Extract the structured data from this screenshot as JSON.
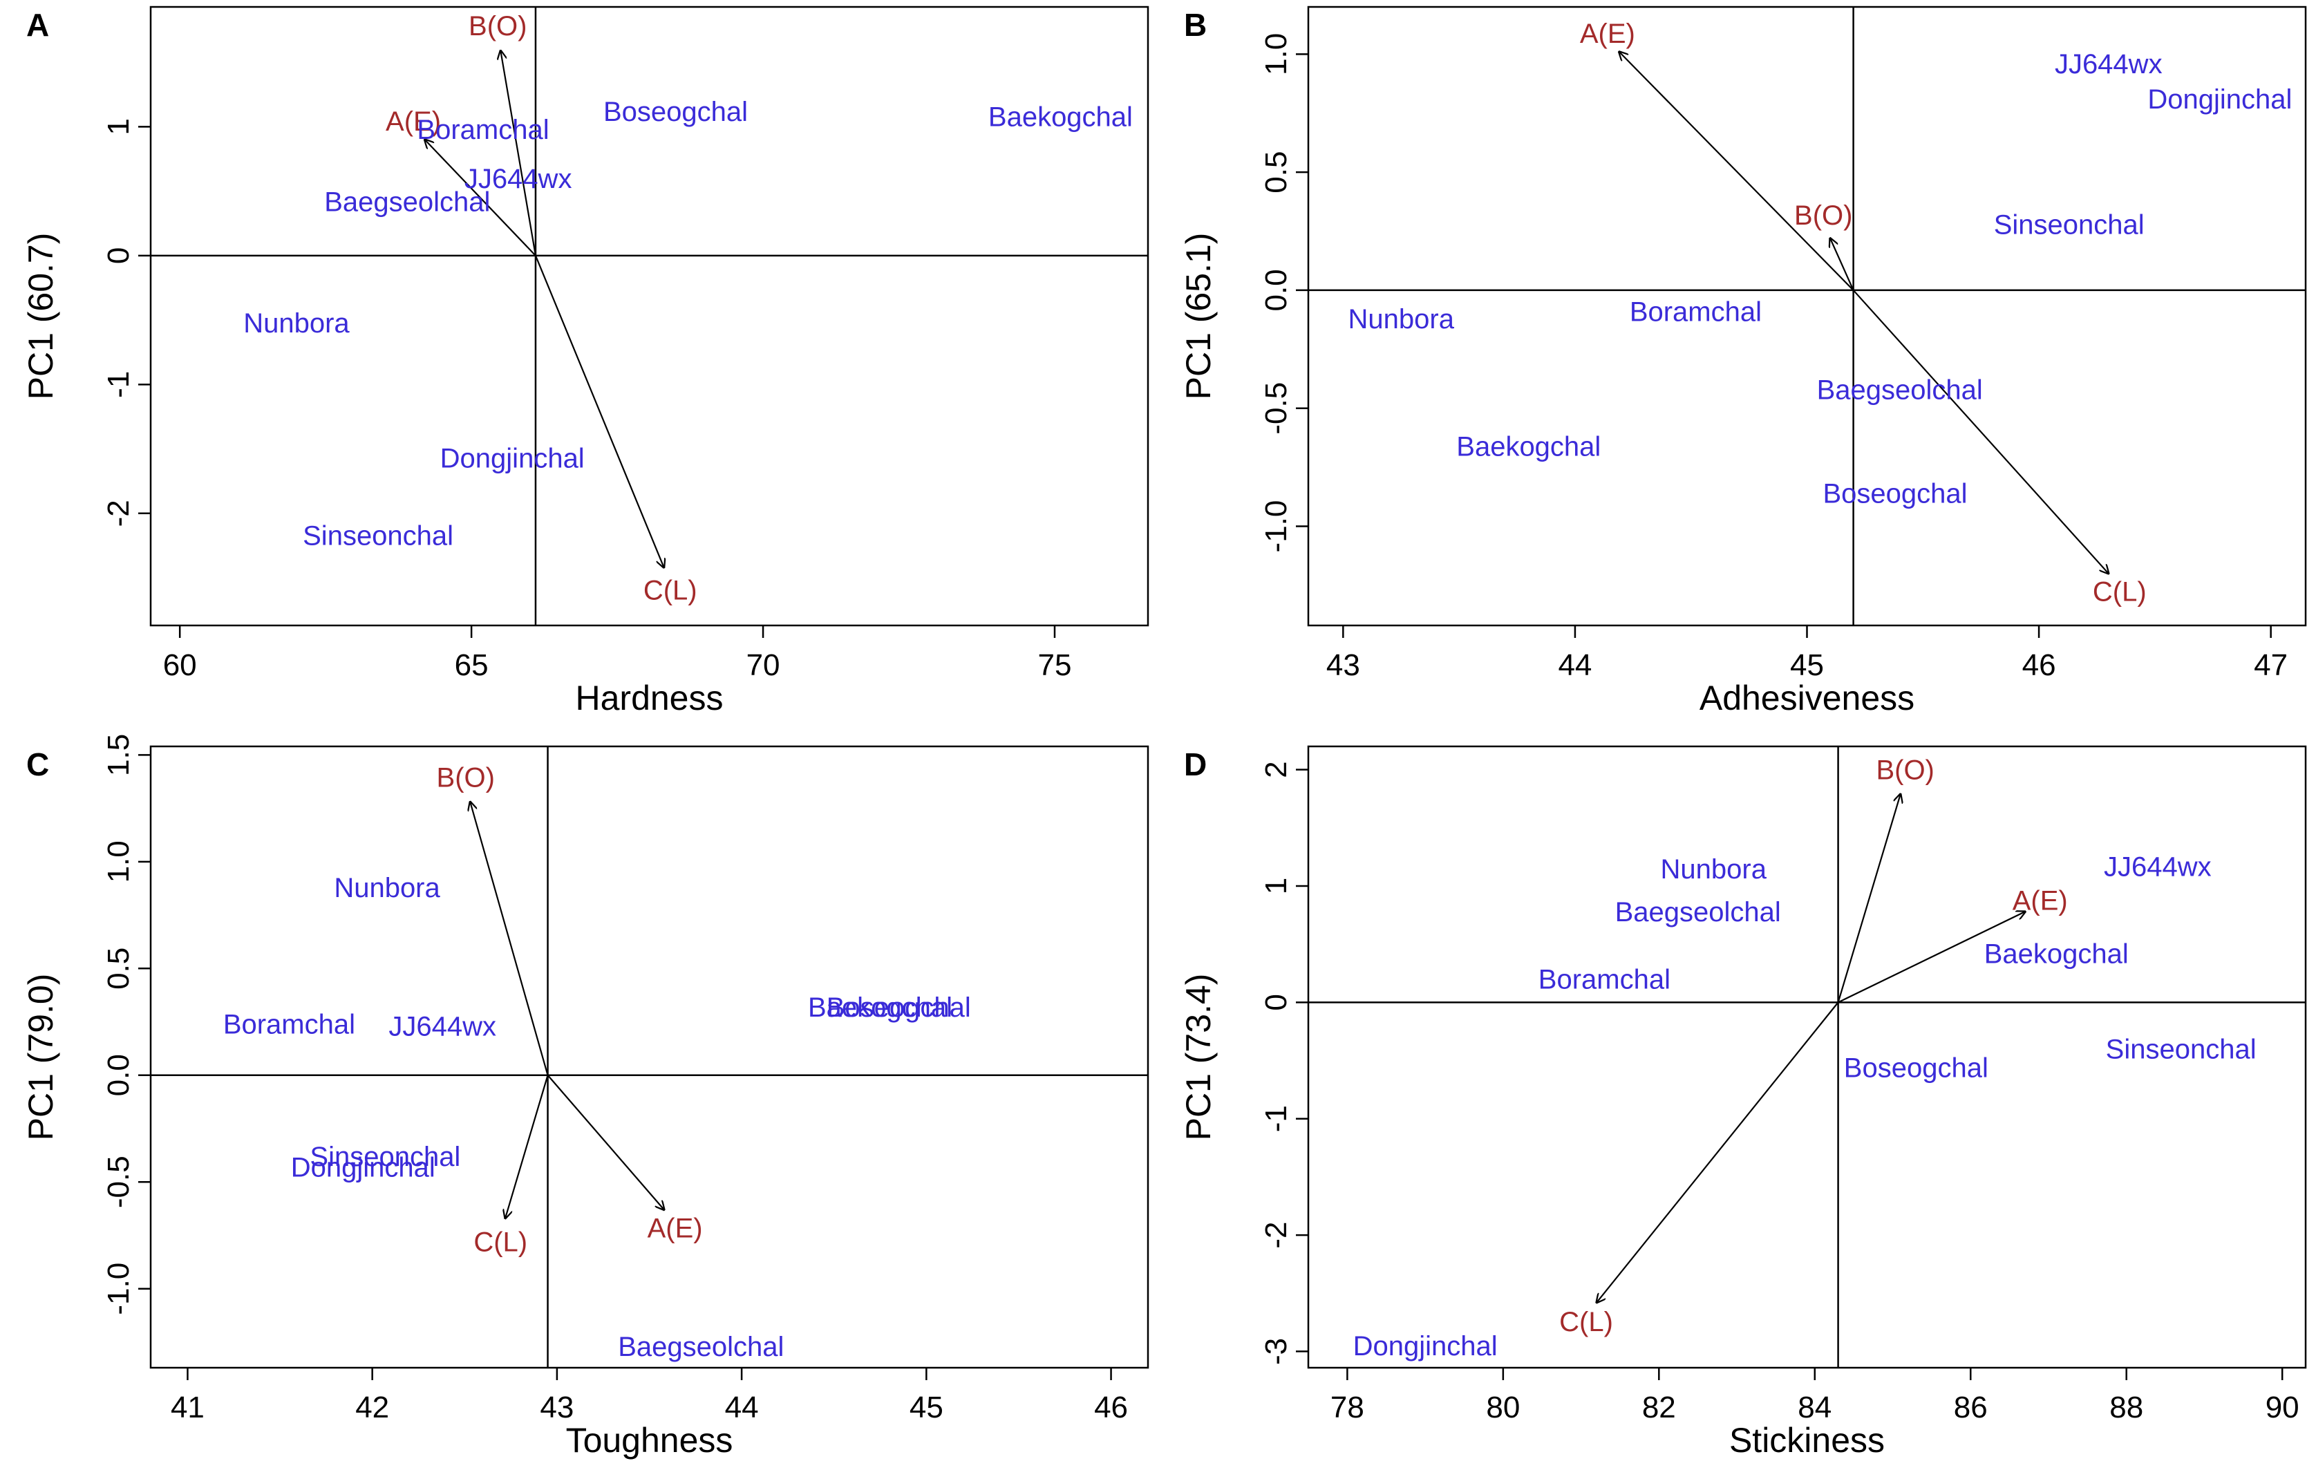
{
  "colors": {
    "cultivar": "#3a2bd8",
    "factor": "#a32a2a",
    "axes": "#000000"
  },
  "panels": [
    {
      "letter": "A",
      "xlabel": "Hardness",
      "ylabel": "PC1 (60.7)",
      "xlim": [
        59.5,
        76.6
      ],
      "ylim": [
        -2.87,
        1.93
      ],
      "xticks": [
        "60",
        "65",
        "70",
        "75"
      ],
      "yticks": [
        "-2",
        "-1",
        "0",
        "1"
      ],
      "origin": [
        66.1,
        0
      ],
      "cultivars": [
        {
          "name": "Boseogchal",
          "x": 68.5,
          "y": 1.12
        },
        {
          "name": "Baekogchal",
          "x": 75.1,
          "y": 1.08
        },
        {
          "name": "Boramchal",
          "x": 65.2,
          "y": 0.98
        },
        {
          "name": "JJ644wx",
          "x": 65.8,
          "y": 0.6
        },
        {
          "name": "Baegseolchal",
          "x": 63.9,
          "y": 0.42
        },
        {
          "name": "Nunbora",
          "x": 62.0,
          "y": -0.52
        },
        {
          "name": "Dongjinchal",
          "x": 65.7,
          "y": -1.57
        },
        {
          "name": "Sinseonchal",
          "x": 63.4,
          "y": -2.17
        }
      ],
      "factors": [
        {
          "name": "B(O)",
          "x": 65.5,
          "y": 1.59
        },
        {
          "name": "A(E)",
          "x": 64.2,
          "y": 0.9
        },
        {
          "name": "C(L)",
          "x": 68.3,
          "y": -2.42
        }
      ]
    },
    {
      "letter": "B",
      "xlabel": "Adhesiveness",
      "ylabel": "PC1 (65.1)",
      "xlim": [
        42.85,
        47.15
      ],
      "ylim": [
        -1.42,
        1.2
      ],
      "xticks": [
        "43",
        "44",
        "45",
        "46",
        "47"
      ],
      "yticks": [
        "-1.0",
        "-0.5",
        "0.0",
        "0.5",
        "1.0"
      ],
      "origin": [
        45.2,
        0
      ],
      "cultivars": [
        {
          "name": "JJ644wx",
          "x": 46.3,
          "y": 0.96
        },
        {
          "name": "Dongjinchal",
          "x": 46.78,
          "y": 0.81
        },
        {
          "name": "Sinseonchal",
          "x": 46.13,
          "y": 0.28
        },
        {
          "name": "Nunbora",
          "x": 43.25,
          "y": -0.12
        },
        {
          "name": "Boramchal",
          "x": 44.52,
          "y": -0.09
        },
        {
          "name": "Baegseolchal",
          "x": 45.4,
          "y": -0.42
        },
        {
          "name": "Baekogchal",
          "x": 43.8,
          "y": -0.66
        },
        {
          "name": "Boseogchal",
          "x": 45.38,
          "y": -0.86
        }
      ],
      "factors": [
        {
          "name": "A(E)",
          "x": 44.19,
          "y": 1.01
        },
        {
          "name": "B(O)",
          "x": 45.1,
          "y": 0.22
        },
        {
          "name": "C(L)",
          "x": 46.3,
          "y": -1.2
        }
      ]
    },
    {
      "letter": "C",
      "xlabel": "Toughness",
      "ylabel": "PC1 (79.0)",
      "xlim": [
        40.8,
        46.2
      ],
      "ylim": [
        -1.37,
        1.54
      ],
      "xticks": [
        "41",
        "42",
        "43",
        "44",
        "45",
        "46"
      ],
      "yticks": [
        "-1.0",
        "-0.5",
        "0.0",
        "0.5",
        "1.0",
        "1.5"
      ],
      "origin": [
        42.95,
        0
      ],
      "cultivars": [
        {
          "name": "Nunbora",
          "x": 42.08,
          "y": 0.88
        },
        {
          "name": "Boramchal",
          "x": 41.55,
          "y": 0.24
        },
        {
          "name": "JJ644wx",
          "x": 42.38,
          "y": 0.23
        },
        {
          "name": "Baekogchal",
          "x": 44.75,
          "y": 0.32
        },
        {
          "name": "Boseogchal",
          "x": 44.85,
          "y": 0.32
        },
        {
          "name": "Sinseonchal",
          "x": 42.07,
          "y": -0.38
        },
        {
          "name": "Dongjinchal",
          "x": 41.95,
          "y": -0.43
        },
        {
          "name": "Baegseolchal",
          "x": 43.78,
          "y": -1.27
        }
      ],
      "factors": [
        {
          "name": "B(O)",
          "x": 42.53,
          "y": 1.28
        },
        {
          "name": "C(L)",
          "x": 42.72,
          "y": -0.67
        },
        {
          "name": "A(E)",
          "x": 43.58,
          "y": -0.63
        }
      ]
    },
    {
      "letter": "D",
      "xlabel": "Stickiness",
      "ylabel": "PC1 (73.4)",
      "xlim": [
        77.5,
        90.3
      ],
      "ylim": [
        -3.14,
        2.2
      ],
      "xticks": [
        "78",
        "80",
        "82",
        "84",
        "86",
        "88",
        "90"
      ],
      "yticks": [
        "-3",
        "-2",
        "-1",
        "0",
        "1",
        "2"
      ],
      "origin": [
        84.3,
        0
      ],
      "cultivars": [
        {
          "name": "Nunbora",
          "x": 82.7,
          "y": 1.15
        },
        {
          "name": "JJ644wx",
          "x": 88.4,
          "y": 1.17
        },
        {
          "name": "Baegseolchal",
          "x": 82.5,
          "y": 0.78
        },
        {
          "name": "Baekogchal",
          "x": 87.1,
          "y": 0.42
        },
        {
          "name": "Boramchal",
          "x": 81.3,
          "y": 0.2
        },
        {
          "name": "Sinseonchal",
          "x": 88.7,
          "y": -0.4
        },
        {
          "name": "Boseogchal",
          "x": 85.3,
          "y": -0.56
        },
        {
          "name": "Dongjinchal",
          "x": 79.0,
          "y": -2.95
        }
      ],
      "factors": [
        {
          "name": "B(O)",
          "x": 85.1,
          "y": 1.79
        },
        {
          "name": "A(E)",
          "x": 86.7,
          "y": 0.78
        },
        {
          "name": "C(L)",
          "x": 81.2,
          "y": -2.58
        }
      ]
    }
  ],
  "chart_data": [
    {
      "type": "scatter",
      "panel": "A",
      "title": "",
      "xlabel": "Hardness",
      "ylabel": "PC1 (60.7)",
      "xlim": [
        59.5,
        76.6
      ],
      "ylim": [
        -2.87,
        1.93
      ],
      "series": [
        {
          "name": "",
          "points": [
            {
              "label": "Boseogchal",
              "x": 68.5,
              "y": 1.12
            },
            {
              "label": "Baekogchal",
              "x": 75.1,
              "y": 1.08
            },
            {
              "label": "Boramchal",
              "x": 65.2,
              "y": 0.98
            },
            {
              "label": "JJ644wx",
              "x": 65.8,
              "y": 0.6
            },
            {
              "label": "Baegseolchal",
              "x": 63.9,
              "y": 0.42
            },
            {
              "label": "Nunbora",
              "x": 62.0,
              "y": -0.52
            },
            {
              "label": "Dongjinchal",
              "x": 65.7,
              "y": -1.57
            },
            {
              "label": "Sinseonchal",
              "x": 63.4,
              "y": -2.17
            }
          ]
        }
      ],
      "vectors": [
        {
          "label": "B(O)",
          "from": [
            66.1,
            0
          ],
          "to": [
            65.5,
            1.59
          ]
        },
        {
          "label": "A(E)",
          "from": [
            66.1,
            0
          ],
          "to": [
            64.2,
            0.9
          ]
        },
        {
          "label": "C(L)",
          "from": [
            66.1,
            0
          ],
          "to": [
            68.3,
            -2.42
          ]
        }
      ]
    },
    {
      "type": "scatter",
      "panel": "B",
      "title": "",
      "xlabel": "Adhesiveness",
      "ylabel": "PC1 (65.1)",
      "xlim": [
        42.85,
        47.15
      ],
      "ylim": [
        -1.42,
        1.2
      ],
      "series": [
        {
          "name": "",
          "points": [
            {
              "label": "JJ644wx",
              "x": 46.3,
              "y": 0.96
            },
            {
              "label": "Dongjinchal",
              "x": 46.78,
              "y": 0.81
            },
            {
              "label": "Sinseonchal",
              "x": 46.13,
              "y": 0.28
            },
            {
              "label": "Nunbora",
              "x": 43.25,
              "y": -0.12
            },
            {
              "label": "Boramchal",
              "x": 44.52,
              "y": -0.09
            },
            {
              "label": "Baegseolchal",
              "x": 45.4,
              "y": -0.42
            },
            {
              "label": "Baekogchal",
              "x": 43.8,
              "y": -0.66
            },
            {
              "label": "Boseogchal",
              "x": 45.38,
              "y": -0.86
            }
          ]
        }
      ],
      "vectors": [
        {
          "label": "A(E)",
          "from": [
            45.2,
            0
          ],
          "to": [
            44.19,
            1.01
          ]
        },
        {
          "label": "B(O)",
          "from": [
            45.2,
            0
          ],
          "to": [
            45.1,
            0.22
          ]
        },
        {
          "label": "C(L)",
          "from": [
            45.2,
            0
          ],
          "to": [
            46.3,
            -1.2
          ]
        }
      ]
    },
    {
      "type": "scatter",
      "panel": "C",
      "title": "",
      "xlabel": "Toughness",
      "ylabel": "PC1 (79.0)",
      "xlim": [
        40.8,
        46.2
      ],
      "ylim": [
        -1.37,
        1.54
      ],
      "series": [
        {
          "name": "",
          "points": [
            {
              "label": "Nunbora",
              "x": 42.08,
              "y": 0.88
            },
            {
              "label": "Boramchal",
              "x": 41.55,
              "y": 0.24
            },
            {
              "label": "JJ644wx",
              "x": 42.38,
              "y": 0.23
            },
            {
              "label": "Baekogchal",
              "x": 44.75,
              "y": 0.32
            },
            {
              "label": "Boseogchal",
              "x": 44.85,
              "y": 0.32
            },
            {
              "label": "Sinseonchal",
              "x": 42.07,
              "y": -0.38
            },
            {
              "label": "Dongjinchal",
              "x": 41.95,
              "y": -0.43
            },
            {
              "label": "Baegseolchal",
              "x": 43.78,
              "y": -1.27
            }
          ]
        }
      ],
      "vectors": [
        {
          "label": "B(O)",
          "from": [
            42.95,
            0
          ],
          "to": [
            42.53,
            1.28
          ]
        },
        {
          "label": "C(L)",
          "from": [
            42.95,
            0
          ],
          "to": [
            42.72,
            -0.67
          ]
        },
        {
          "label": "A(E)",
          "from": [
            42.95,
            0
          ],
          "to": [
            43.58,
            -0.63
          ]
        }
      ]
    },
    {
      "type": "scatter",
      "panel": "D",
      "title": "",
      "xlabel": "Stickiness",
      "ylabel": "PC1 (73.4)",
      "xlim": [
        77.5,
        90.3
      ],
      "ylim": [
        -3.14,
        2.2
      ],
      "series": [
        {
          "name": "",
          "points": [
            {
              "label": "Nunbora",
              "x": 82.7,
              "y": 1.15
            },
            {
              "label": "JJ644wx",
              "x": 88.4,
              "y": 1.17
            },
            {
              "label": "Baegseolchal",
              "x": 82.5,
              "y": 0.78
            },
            {
              "label": "Baekogchal",
              "x": 87.1,
              "y": 0.42
            },
            {
              "label": "Boramchal",
              "x": 81.3,
              "y": 0.2
            },
            {
              "label": "Sinseonchal",
              "x": 88.7,
              "y": -0.4
            },
            {
              "label": "Boseogchal",
              "x": 85.3,
              "y": -0.56
            },
            {
              "label": "Dongjinchal",
              "x": 79.0,
              "y": -2.95
            }
          ]
        }
      ],
      "vectors": [
        {
          "label": "B(O)",
          "from": [
            84.3,
            0
          ],
          "to": [
            85.1,
            1.79
          ]
        },
        {
          "label": "A(E)",
          "from": [
            84.3,
            0
          ],
          "to": [
            86.7,
            0.78
          ]
        },
        {
          "label": "C(L)",
          "from": [
            84.3,
            0
          ],
          "to": [
            81.2,
            -2.58
          ]
        }
      ]
    }
  ]
}
